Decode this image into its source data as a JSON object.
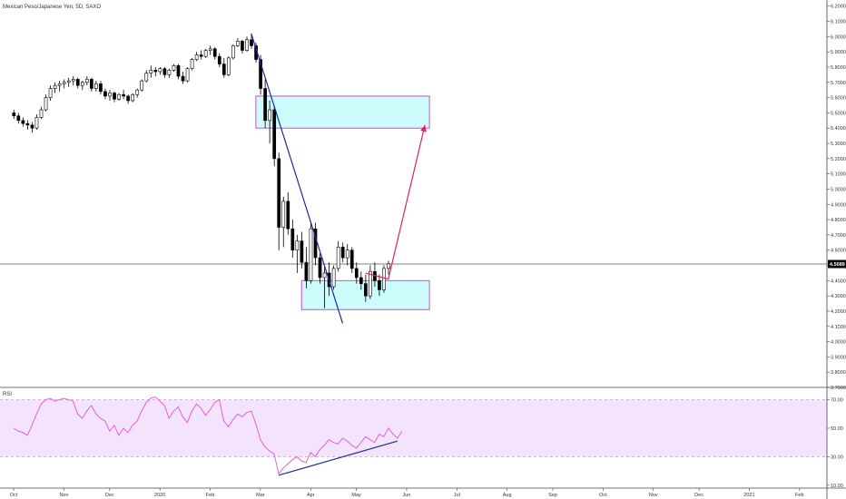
{
  "symbol_title": "Mexican Peso/Japanese Yen, 5D, SAXO",
  "indicator_label": "RSI",
  "current_price_label": "4.5089",
  "colors": {
    "candle_up": "#ffffff",
    "candle_down": "#000000",
    "candle_outline": "#000000",
    "zone_fill": "#ccfcfc",
    "zone_border": "#e040e0",
    "trendline": "#1f2a9c",
    "projection_arrow": "#e0225a",
    "rsi_line": "#e060e0",
    "rsi_band": "#f4e4fb",
    "rsi_trendline": "#1f2a9c",
    "price_line": "#555555",
    "price_badge_bg": "#000000",
    "price_badge_text": "#ffffff"
  },
  "chart_data": [
    {
      "type": "candlestick",
      "title": "Mexican Peso/Japanese Yen, 5D, SAXO",
      "x_ticks": [
        "Oct",
        "Nov",
        "Dec",
        "2020",
        "Feb",
        "Mar",
        "Apr",
        "May",
        "Jun",
        "Jul",
        "Aug",
        "Sep",
        "Oct",
        "Nov",
        "Dec",
        "2021",
        "Feb"
      ],
      "x_tick_index": [
        0,
        11,
        21,
        32,
        43,
        54,
        65,
        75,
        86,
        97,
        108,
        118,
        129,
        140,
        150,
        161,
        172
      ],
      "bar_count_range": [
        -3,
        178
      ],
      "y_ticks": [
        "6.2000",
        "6.1000",
        "6.0000",
        "5.9000",
        "5.8000",
        "5.7000",
        "5.6000",
        "5.5000",
        "5.4000",
        "5.3000",
        "5.2000",
        "5.1000",
        "5.0000",
        "4.9000",
        "4.8000",
        "4.7000",
        "4.6000",
        "4.5000",
        "4.4000",
        "4.3000",
        "4.2000",
        "4.1000",
        "4.0000",
        "3.9000",
        "3.8000",
        "3.7000"
      ],
      "ylim": [
        3.7,
        6.24
      ],
      "current_price": 4.5089,
      "zones": [
        {
          "from_index": 53,
          "to_index": 91,
          "top": 5.61,
          "bottom": 5.4
        },
        {
          "from_index": 63,
          "to_index": 91,
          "top": 4.4,
          "bottom": 4.21
        }
      ],
      "trendline": {
        "from": {
          "index": 52,
          "price": 6.02
        },
        "to": {
          "index": 72,
          "price": 4.12
        }
      },
      "projection_arrow": [
        {
          "index": 77,
          "price": 4.45
        },
        {
          "index": 82,
          "price": 4.41
        },
        {
          "index": 90,
          "price": 5.42
        }
      ],
      "candles": [
        {
          "o": 5.5,
          "h": 5.52,
          "l": 5.46,
          "c": 5.48
        },
        {
          "o": 5.48,
          "h": 5.5,
          "l": 5.43,
          "c": 5.45
        },
        {
          "o": 5.45,
          "h": 5.47,
          "l": 5.41,
          "c": 5.43
        },
        {
          "o": 5.43,
          "h": 5.45,
          "l": 5.39,
          "c": 5.42
        },
        {
          "o": 5.42,
          "h": 5.44,
          "l": 5.37,
          "c": 5.4
        },
        {
          "o": 5.4,
          "h": 5.49,
          "l": 5.39,
          "c": 5.47
        },
        {
          "o": 5.47,
          "h": 5.54,
          "l": 5.46,
          "c": 5.52
        },
        {
          "o": 5.52,
          "h": 5.62,
          "l": 5.51,
          "c": 5.6
        },
        {
          "o": 5.6,
          "h": 5.68,
          "l": 5.58,
          "c": 5.66
        },
        {
          "o": 5.66,
          "h": 5.7,
          "l": 5.63,
          "c": 5.68
        },
        {
          "o": 5.68,
          "h": 5.71,
          "l": 5.64,
          "c": 5.69
        },
        {
          "o": 5.69,
          "h": 5.72,
          "l": 5.66,
          "c": 5.7
        },
        {
          "o": 5.7,
          "h": 5.73,
          "l": 5.67,
          "c": 5.71
        },
        {
          "o": 5.71,
          "h": 5.74,
          "l": 5.68,
          "c": 5.72
        },
        {
          "o": 5.72,
          "h": 5.73,
          "l": 5.66,
          "c": 5.68
        },
        {
          "o": 5.68,
          "h": 5.71,
          "l": 5.65,
          "c": 5.7
        },
        {
          "o": 5.7,
          "h": 5.74,
          "l": 5.68,
          "c": 5.72
        },
        {
          "o": 5.72,
          "h": 5.73,
          "l": 5.64,
          "c": 5.66
        },
        {
          "o": 5.66,
          "h": 5.71,
          "l": 5.64,
          "c": 5.69
        },
        {
          "o": 5.69,
          "h": 5.71,
          "l": 5.62,
          "c": 5.64
        },
        {
          "o": 5.64,
          "h": 5.66,
          "l": 5.59,
          "c": 5.61
        },
        {
          "o": 5.61,
          "h": 5.65,
          "l": 5.58,
          "c": 5.63
        },
        {
          "o": 5.63,
          "h": 5.64,
          "l": 5.57,
          "c": 5.59
        },
        {
          "o": 5.59,
          "h": 5.63,
          "l": 5.58,
          "c": 5.62
        },
        {
          "o": 5.62,
          "h": 5.65,
          "l": 5.59,
          "c": 5.61
        },
        {
          "o": 5.61,
          "h": 5.62,
          "l": 5.56,
          "c": 5.58
        },
        {
          "o": 5.58,
          "h": 5.63,
          "l": 5.57,
          "c": 5.62
        },
        {
          "o": 5.62,
          "h": 5.66,
          "l": 5.6,
          "c": 5.65
        },
        {
          "o": 5.65,
          "h": 5.72,
          "l": 5.64,
          "c": 5.71
        },
        {
          "o": 5.71,
          "h": 5.78,
          "l": 5.7,
          "c": 5.76
        },
        {
          "o": 5.76,
          "h": 5.81,
          "l": 5.73,
          "c": 5.78
        },
        {
          "o": 5.78,
          "h": 5.8,
          "l": 5.74,
          "c": 5.77
        },
        {
          "o": 5.77,
          "h": 5.8,
          "l": 5.75,
          "c": 5.79
        },
        {
          "o": 5.79,
          "h": 5.8,
          "l": 5.73,
          "c": 5.75
        },
        {
          "o": 5.75,
          "h": 5.79,
          "l": 5.73,
          "c": 5.78
        },
        {
          "o": 5.78,
          "h": 5.82,
          "l": 5.77,
          "c": 5.81
        },
        {
          "o": 5.81,
          "h": 5.82,
          "l": 5.72,
          "c": 5.74
        },
        {
          "o": 5.74,
          "h": 5.77,
          "l": 5.69,
          "c": 5.71
        },
        {
          "o": 5.71,
          "h": 5.8,
          "l": 5.7,
          "c": 5.79
        },
        {
          "o": 5.79,
          "h": 5.86,
          "l": 5.78,
          "c": 5.85
        },
        {
          "o": 5.85,
          "h": 5.9,
          "l": 5.84,
          "c": 5.88
        },
        {
          "o": 5.88,
          "h": 5.91,
          "l": 5.85,
          "c": 5.87
        },
        {
          "o": 5.87,
          "h": 5.92,
          "l": 5.86,
          "c": 5.91
        },
        {
          "o": 5.91,
          "h": 5.94,
          "l": 5.88,
          "c": 5.92
        },
        {
          "o": 5.92,
          "h": 5.93,
          "l": 5.85,
          "c": 5.87
        },
        {
          "o": 5.87,
          "h": 5.89,
          "l": 5.8,
          "c": 5.82
        },
        {
          "o": 5.82,
          "h": 5.86,
          "l": 5.73,
          "c": 5.75
        },
        {
          "o": 5.75,
          "h": 5.87,
          "l": 5.74,
          "c": 5.86
        },
        {
          "o": 5.86,
          "h": 5.95,
          "l": 5.85,
          "c": 5.94
        },
        {
          "o": 5.94,
          "h": 5.99,
          "l": 5.93,
          "c": 5.97
        },
        {
          "o": 5.97,
          "h": 5.98,
          "l": 5.89,
          "c": 5.91
        },
        {
          "o": 5.91,
          "h": 6.0,
          "l": 5.9,
          "c": 5.98
        },
        {
          "o": 5.98,
          "h": 6.02,
          "l": 5.92,
          "c": 5.94
        },
        {
          "o": 5.94,
          "h": 5.96,
          "l": 5.83,
          "c": 5.85
        },
        {
          "o": 5.85,
          "h": 5.88,
          "l": 5.62,
          "c": 5.66
        },
        {
          "o": 5.66,
          "h": 5.72,
          "l": 5.4,
          "c": 5.45
        },
        {
          "o": 5.45,
          "h": 5.58,
          "l": 5.3,
          "c": 5.52
        },
        {
          "o": 5.52,
          "h": 5.55,
          "l": 5.15,
          "c": 5.2
        },
        {
          "o": 5.2,
          "h": 5.24,
          "l": 4.6,
          "c": 4.75
        },
        {
          "o": 4.75,
          "h": 4.95,
          "l": 4.62,
          "c": 4.92
        },
        {
          "o": 4.92,
          "h": 4.98,
          "l": 4.7,
          "c": 4.74
        },
        {
          "o": 4.74,
          "h": 4.8,
          "l": 4.55,
          "c": 4.6
        },
        {
          "o": 4.6,
          "h": 4.7,
          "l": 4.45,
          "c": 4.66
        },
        {
          "o": 4.66,
          "h": 4.72,
          "l": 4.48,
          "c": 4.52
        },
        {
          "o": 4.52,
          "h": 4.62,
          "l": 4.35,
          "c": 4.4
        },
        {
          "o": 4.4,
          "h": 4.78,
          "l": 4.38,
          "c": 4.74
        },
        {
          "o": 4.74,
          "h": 4.78,
          "l": 4.5,
          "c": 4.55
        },
        {
          "o": 4.55,
          "h": 4.58,
          "l": 4.38,
          "c": 4.42
        },
        {
          "o": 4.42,
          "h": 4.5,
          "l": 4.22,
          "c": 4.45
        },
        {
          "o": 4.45,
          "h": 4.52,
          "l": 4.3,
          "c": 4.36
        },
        {
          "o": 4.36,
          "h": 4.5,
          "l": 4.34,
          "c": 4.48
        },
        {
          "o": 4.48,
          "h": 4.66,
          "l": 4.46,
          "c": 4.62
        },
        {
          "o": 4.62,
          "h": 4.65,
          "l": 4.52,
          "c": 4.55
        },
        {
          "o": 4.55,
          "h": 4.64,
          "l": 4.5,
          "c": 4.6
        },
        {
          "o": 4.6,
          "h": 4.62,
          "l": 4.45,
          "c": 4.48
        },
        {
          "o": 4.48,
          "h": 4.52,
          "l": 4.38,
          "c": 4.42
        },
        {
          "o": 4.42,
          "h": 4.46,
          "l": 4.34,
          "c": 4.38
        },
        {
          "o": 4.38,
          "h": 4.44,
          "l": 4.26,
          "c": 4.3
        },
        {
          "o": 4.3,
          "h": 4.5,
          "l": 4.28,
          "c": 4.46
        },
        {
          "o": 4.46,
          "h": 4.52,
          "l": 4.36,
          "c": 4.4
        },
        {
          "o": 4.4,
          "h": 4.44,
          "l": 4.3,
          "c": 4.34
        },
        {
          "o": 4.34,
          "h": 4.5,
          "l": 4.32,
          "c": 4.48
        },
        {
          "o": 4.48,
          "h": 4.53,
          "l": 4.44,
          "c": 4.51
        }
      ]
    },
    {
      "type": "line",
      "title": "RSI",
      "y_ticks": [
        "70.00",
        "50.00",
        "30.00",
        "10.00"
      ],
      "ylim": [
        8,
        78
      ],
      "band": [
        30,
        70
      ],
      "series": [
        {
          "values": [
            50,
            48,
            47,
            45,
            52,
            60,
            67,
            70,
            71,
            69,
            70,
            71,
            70,
            69,
            60,
            57,
            62,
            66,
            60,
            57,
            55,
            48,
            52,
            45,
            50,
            47,
            52,
            55,
            62,
            68,
            71,
            72,
            69,
            66,
            57,
            62,
            65,
            58,
            54,
            62,
            67,
            64,
            59,
            63,
            68,
            70,
            55,
            51,
            56,
            60,
            58,
            61,
            62,
            53,
            42,
            37,
            34,
            32,
            18,
            22,
            25,
            28,
            30,
            27,
            26,
            33,
            30,
            35,
            38,
            42,
            40,
            39,
            43,
            41,
            38,
            36,
            40,
            44,
            42,
            40,
            46,
            44,
            50,
            46,
            43,
            48
          ]
        }
      ],
      "trendline": {
        "from": {
          "index": 58,
          "value": 17
        },
        "to": {
          "index": 84,
          "value": 41
        }
      }
    }
  ]
}
